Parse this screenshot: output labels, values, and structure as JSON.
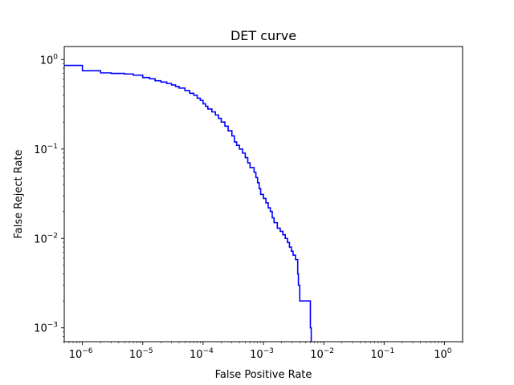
{
  "chart_data": {
    "type": "line",
    "title": "DET curve",
    "xlabel": "False Positive Rate",
    "ylabel": "False Reject Rate",
    "xscale": "log",
    "yscale": "log",
    "xlim": [
      5e-07,
      2
    ],
    "ylim": [
      0.0007,
      1.4
    ],
    "grid": false,
    "x_ticks": [
      {
        "value": 1e-06,
        "base": "10",
        "exp": "−6"
      },
      {
        "value": 1e-05,
        "base": "10",
        "exp": "−5"
      },
      {
        "value": 0.0001,
        "base": "10",
        "exp": "−4"
      },
      {
        "value": 0.001,
        "base": "10",
        "exp": "−3"
      },
      {
        "value": 0.01,
        "base": "10",
        "exp": "−2"
      },
      {
        "value": 0.1,
        "base": "10",
        "exp": "−1"
      },
      {
        "value": 1,
        "base": "10",
        "exp": "0"
      }
    ],
    "y_ticks": [
      {
        "value": 0.001,
        "base": "10",
        "exp": "−3"
      },
      {
        "value": 0.01,
        "base": "10",
        "exp": "−2"
      },
      {
        "value": 0.1,
        "base": "10",
        "exp": "−1"
      },
      {
        "value": 1,
        "base": "10",
        "exp": "0"
      }
    ],
    "series": [
      {
        "color": "#0000ff",
        "step": true,
        "points": [
          [
            5e-07,
            0.86
          ],
          [
            1e-06,
            0.86
          ],
          [
            1e-06,
            0.75
          ],
          [
            2e-06,
            0.75
          ],
          [
            2e-06,
            0.71
          ],
          [
            3e-06,
            0.7
          ],
          [
            5e-06,
            0.69
          ],
          [
            7e-06,
            0.67
          ],
          [
            1e-05,
            0.67
          ],
          [
            1e-05,
            0.63
          ],
          [
            1.3e-05,
            0.61
          ],
          [
            1.6e-05,
            0.58
          ],
          [
            2e-05,
            0.56
          ],
          [
            2.5e-05,
            0.54
          ],
          [
            3e-05,
            0.52
          ],
          [
            3.5e-05,
            0.5
          ],
          [
            4e-05,
            0.48
          ],
          [
            5e-05,
            0.45
          ],
          [
            6e-05,
            0.42
          ],
          [
            7e-05,
            0.4
          ],
          [
            8e-05,
            0.37
          ],
          [
            9e-05,
            0.35
          ],
          [
            0.0001,
            0.32
          ],
          [
            0.00011,
            0.3
          ],
          [
            0.00012,
            0.28
          ],
          [
            0.00014,
            0.26
          ],
          [
            0.00016,
            0.24
          ],
          [
            0.00018,
            0.22
          ],
          [
            0.0002,
            0.2
          ],
          [
            0.00023,
            0.18
          ],
          [
            0.00026,
            0.16
          ],
          [
            0.0003,
            0.14
          ],
          [
            0.00033,
            0.12
          ],
          [
            0.00036,
            0.11
          ],
          [
            0.0004,
            0.1
          ],
          [
            0.00045,
            0.09
          ],
          [
            0.0005,
            0.08
          ],
          [
            0.00055,
            0.07
          ],
          [
            0.0006,
            0.062
          ],
          [
            0.0007,
            0.055
          ],
          [
            0.00075,
            0.048
          ],
          [
            0.0008,
            0.042
          ],
          [
            0.00085,
            0.036
          ],
          [
            0.0009,
            0.031
          ],
          [
            0.001,
            0.028
          ],
          [
            0.0011,
            0.025
          ],
          [
            0.0012,
            0.022
          ],
          [
            0.0013,
            0.02
          ],
          [
            0.0014,
            0.017
          ],
          [
            0.0015,
            0.015
          ],
          [
            0.0017,
            0.013
          ],
          [
            0.0019,
            0.012
          ],
          [
            0.0021,
            0.011
          ],
          [
            0.0023,
            0.01
          ],
          [
            0.0025,
            0.009
          ],
          [
            0.0027,
            0.008
          ],
          [
            0.0029,
            0.0072
          ],
          [
            0.0031,
            0.0065
          ],
          [
            0.0034,
            0.0058
          ],
          [
            0.0037,
            0.005
          ],
          [
            0.0037,
            0.004
          ],
          [
            0.0038,
            0.0035
          ],
          [
            0.0038,
            0.003
          ],
          [
            0.004,
            0.003
          ],
          [
            0.004,
            0.002
          ],
          [
            0.006,
            0.002
          ],
          [
            0.006,
            0.001
          ],
          [
            0.0062,
            0.001
          ],
          [
            0.0062,
            0.0007
          ]
        ]
      }
    ]
  }
}
